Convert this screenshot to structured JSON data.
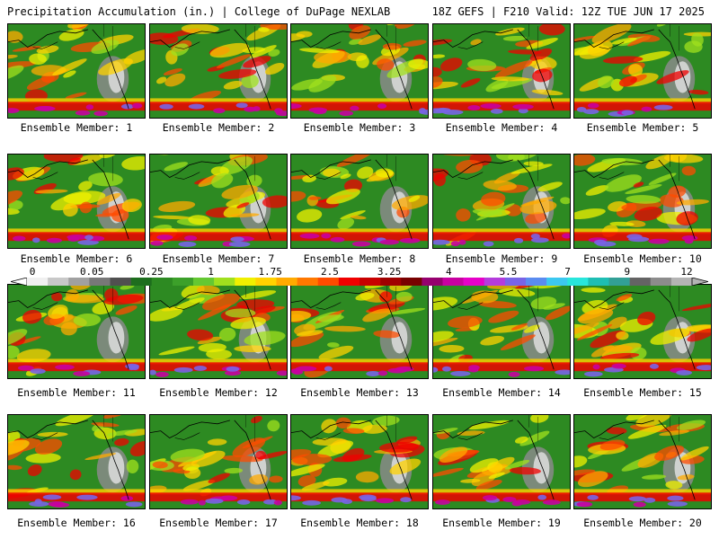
{
  "header": {
    "left": "Precipitation Accumulation (in.) | College of DuPage NEXLAB",
    "right": "18Z GEFS | F210 Valid: 12Z TUE JUN 17 2025"
  },
  "member_label_prefix": "Ensemble Member: ",
  "members": [
    1,
    2,
    3,
    4,
    5,
    6,
    7,
    8,
    9,
    10,
    11,
    12,
    13,
    14,
    15,
    16,
    17,
    18,
    19,
    20
  ],
  "scale": {
    "tick_labels": [
      "0",
      "0.05",
      "0.25",
      "1",
      "1.75",
      "2.5",
      "3.25",
      "4",
      "5.5",
      "7",
      "9",
      "12"
    ],
    "colors": [
      "#f0f0f0",
      "#c8c8c8",
      "#a0a0a0",
      "#787878",
      "#505050",
      "#1e6e1e",
      "#2d8a22",
      "#3ca02a",
      "#64c832",
      "#a0e01e",
      "#f0f000",
      "#ffd200",
      "#ffaa00",
      "#ff7800",
      "#ff4b00",
      "#f00000",
      "#c80000",
      "#a00000",
      "#780000",
      "#96006e",
      "#c800a0",
      "#e600c8",
      "#b43cdc",
      "#7864e6",
      "#5a8cf0",
      "#3cc8f0",
      "#28e6dc",
      "#1ebeb4",
      "#32a096",
      "#646464",
      "#8c8c8c",
      "#b4b4b4"
    ]
  }
}
